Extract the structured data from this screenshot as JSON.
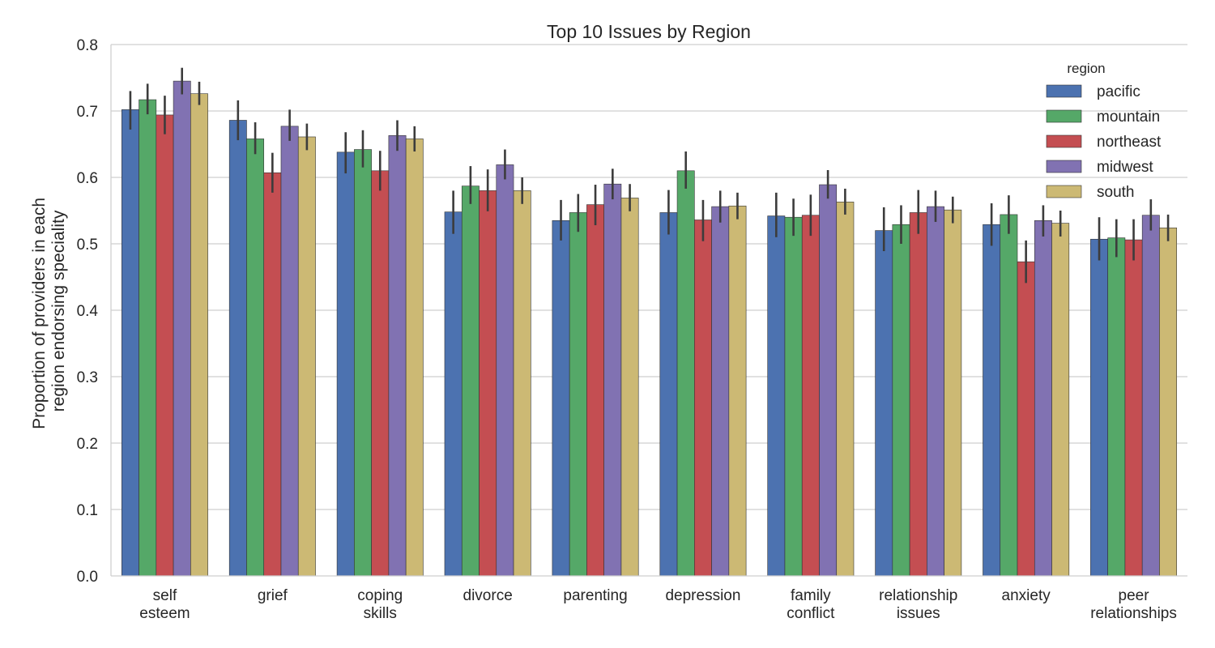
{
  "chart_data": {
    "type": "bar",
    "title": "Top 10 Issues by Region",
    "ylabel": "Proportion of providers in each region endorsing speciality",
    "ylabel_lines": [
      "Proportion of providers in each",
      "region endorsing speciality"
    ],
    "xlabel": "",
    "ylim": [
      0,
      0.8
    ],
    "yticks": [
      "0.0",
      "0.1",
      "0.2",
      "0.3",
      "0.4",
      "0.5",
      "0.6",
      "0.7",
      "0.8"
    ],
    "grid": "horizontal",
    "legend": {
      "title": "region",
      "placement": "top-right"
    },
    "categories": [
      [
        "self",
        "esteem"
      ],
      [
        "grief"
      ],
      [
        "coping",
        "skills"
      ],
      [
        "divorce"
      ],
      [
        "parenting"
      ],
      [
        "depression"
      ],
      [
        "family",
        "conflict"
      ],
      [
        "relationship",
        "issues"
      ],
      [
        "anxiety"
      ],
      [
        "peer",
        "relationships"
      ]
    ],
    "series": [
      {
        "name": "pacific",
        "color": "#4c72b0",
        "values": [
          0.702,
          0.686,
          0.638,
          0.548,
          0.535,
          0.547,
          0.542,
          0.52,
          0.529,
          0.507
        ],
        "ci": [
          [
            0.672,
            0.73
          ],
          [
            0.656,
            0.716
          ],
          [
            0.606,
            0.668
          ],
          [
            0.515,
            0.58
          ],
          [
            0.505,
            0.566
          ],
          [
            0.514,
            0.581
          ],
          [
            0.51,
            0.577
          ],
          [
            0.489,
            0.555
          ],
          [
            0.497,
            0.561
          ],
          [
            0.475,
            0.54
          ]
        ]
      },
      {
        "name": "mountain",
        "color": "#55a868",
        "values": [
          0.717,
          0.658,
          0.642,
          0.587,
          0.547,
          0.61,
          0.54,
          0.529,
          0.544,
          0.509
        ],
        "ci": [
          [
            0.695,
            0.741
          ],
          [
            0.635,
            0.683
          ],
          [
            0.615,
            0.671
          ],
          [
            0.56,
            0.617
          ],
          [
            0.518,
            0.575
          ],
          [
            0.583,
            0.639
          ],
          [
            0.512,
            0.568
          ],
          [
            0.5,
            0.558
          ],
          [
            0.515,
            0.573
          ],
          [
            0.48,
            0.537
          ]
        ]
      },
      {
        "name": "northeast",
        "color": "#c44e52",
        "values": [
          0.694,
          0.607,
          0.61,
          0.58,
          0.559,
          0.536,
          0.543,
          0.547,
          0.473,
          0.506
        ],
        "ci": [
          [
            0.665,
            0.723
          ],
          [
            0.577,
            0.637
          ],
          [
            0.58,
            0.64
          ],
          [
            0.549,
            0.612
          ],
          [
            0.528,
            0.589
          ],
          [
            0.504,
            0.566
          ],
          [
            0.512,
            0.574
          ],
          [
            0.515,
            0.581
          ],
          [
            0.441,
            0.505
          ],
          [
            0.475,
            0.537
          ]
        ]
      },
      {
        "name": "midwest",
        "color": "#8172b2",
        "values": [
          0.745,
          0.677,
          0.663,
          0.619,
          0.59,
          0.556,
          0.589,
          0.556,
          0.535,
          0.543
        ],
        "ci": [
          [
            0.725,
            0.765
          ],
          [
            0.655,
            0.702
          ],
          [
            0.64,
            0.686
          ],
          [
            0.597,
            0.642
          ],
          [
            0.567,
            0.613
          ],
          [
            0.532,
            0.58
          ],
          [
            0.568,
            0.611
          ],
          [
            0.533,
            0.58
          ],
          [
            0.511,
            0.558
          ],
          [
            0.52,
            0.567
          ]
        ]
      },
      {
        "name": "south",
        "color": "#ccb974",
        "values": [
          0.726,
          0.661,
          0.658,
          0.58,
          0.569,
          0.557,
          0.563,
          0.551,
          0.531,
          0.524
        ],
        "ci": [
          [
            0.709,
            0.744
          ],
          [
            0.641,
            0.681
          ],
          [
            0.639,
            0.677
          ],
          [
            0.56,
            0.6
          ],
          [
            0.549,
            0.59
          ],
          [
            0.537,
            0.577
          ],
          [
            0.544,
            0.583
          ],
          [
            0.531,
            0.571
          ],
          [
            0.511,
            0.55
          ],
          [
            0.504,
            0.544
          ]
        ]
      }
    ]
  }
}
